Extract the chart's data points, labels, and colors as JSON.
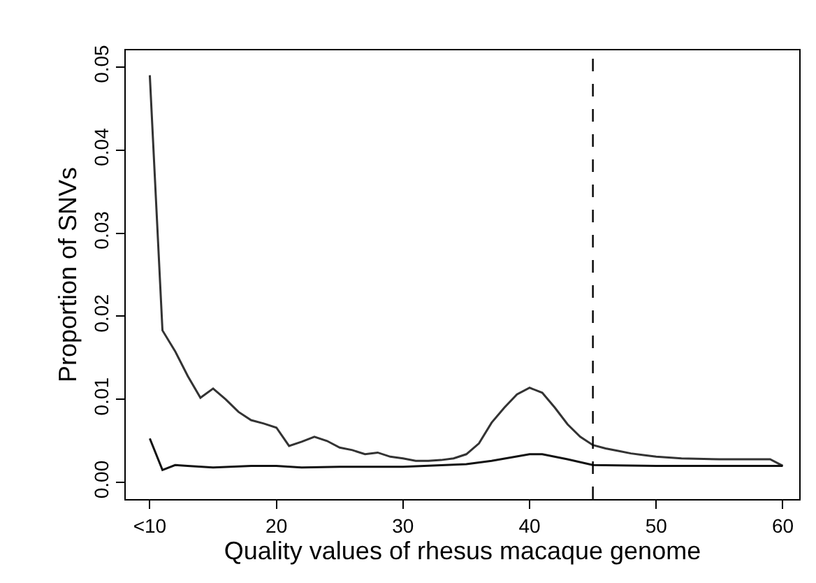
{
  "chart_data": {
    "type": "line",
    "xlabel": "Quality values of rhesus macaque genome",
    "ylabel": "Proportion of SNVs",
    "xlim": [
      8.1,
      61.3
    ],
    "xticks": [
      {
        "value": 10,
        "label": "<10"
      },
      20,
      30,
      40,
      50,
      60
    ],
    "ylim": [
      -0.002,
      0.052
    ],
    "yticks": [
      {
        "value": 0,
        "label": "0.00"
      },
      {
        "value": 0.01,
        "label": "0.01"
      },
      {
        "value": 0.02,
        "label": "0.02"
      },
      {
        "value": 0.03,
        "label": "0.03"
      },
      {
        "value": 0.04,
        "label": "0.04"
      },
      {
        "value": 0.05,
        "label": "0.05"
      }
    ],
    "marker": "none",
    "line_style": "solid",
    "ref_lines": [
      {
        "axis": "x",
        "value": 45,
        "line_style": "dashed",
        "color": "#000000"
      }
    ],
    "series": [
      {
        "color": "#333333",
        "x": [
          10,
          11,
          12,
          13,
          14,
          15,
          16,
          17,
          18,
          19,
          20,
          21,
          22,
          23,
          24,
          25,
          26,
          27,
          28,
          29,
          30,
          31,
          32,
          33,
          34,
          35,
          36,
          37,
          38,
          39,
          40,
          41,
          42,
          43,
          44,
          45,
          46,
          47,
          48,
          49,
          50,
          52,
          55,
          58,
          59,
          60
        ],
        "values": [
          0.049,
          0.0183,
          0.0158,
          0.0128,
          0.0102,
          0.0113,
          0.01,
          0.0085,
          0.0075,
          0.0071,
          0.0066,
          0.0044,
          0.0049,
          0.0055,
          0.005,
          0.0042,
          0.0039,
          0.0034,
          0.0036,
          0.0031,
          0.0029,
          0.0026,
          0.0026,
          0.0027,
          0.0029,
          0.0034,
          0.0047,
          0.0072,
          0.009,
          0.0106,
          0.0114,
          0.0108,
          0.009,
          0.007,
          0.0055,
          0.0045,
          0.0041,
          0.0038,
          0.0035,
          0.0033,
          0.0031,
          0.0029,
          0.0028,
          0.0028,
          0.0028,
          0.002
        ]
      },
      {
        "color": "#111111",
        "x": [
          10,
          11,
          12,
          13,
          15,
          18,
          20,
          22,
          25,
          30,
          35,
          37,
          40,
          41,
          43,
          45,
          50,
          60
        ],
        "values": [
          0.0053,
          0.0015,
          0.0021,
          0.002,
          0.0018,
          0.002,
          0.002,
          0.0018,
          0.0019,
          0.0019,
          0.0022,
          0.0026,
          0.0034,
          0.0034,
          0.0028,
          0.0021,
          0.002,
          0.002
        ]
      }
    ]
  }
}
